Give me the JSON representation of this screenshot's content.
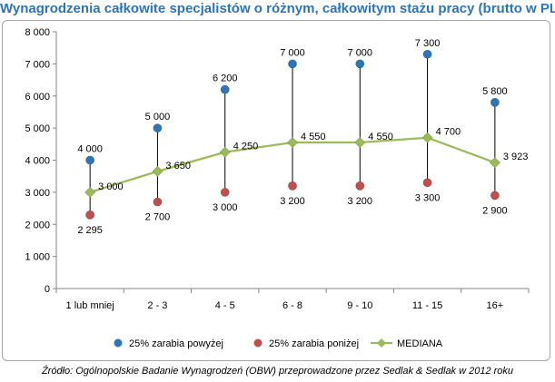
{
  "chart_data": {
    "type": "line",
    "title": "Wynagrodzenia całkowite specjalistów o różnym, całkowitym stażu pracy (brutto w PLN)",
    "categories": [
      "1 lub mniej",
      "2 - 3",
      "4 - 5",
      "6 - 8",
      "9 - 10",
      "11 - 15",
      "16+"
    ],
    "ylim": [
      0,
      8000
    ],
    "yticks": [
      0,
      1000,
      2000,
      3000,
      4000,
      5000,
      6000,
      7000,
      8000
    ],
    "ytick_labels": [
      "0",
      "1 000",
      "2 000",
      "3 000",
      "4 000",
      "5 000",
      "6 000",
      "7 000",
      "8 000"
    ],
    "grid": false,
    "legend_position": "bottom",
    "series": [
      {
        "name": "25% zarabia powyżej",
        "color": "#2e75b6",
        "marker": "circle",
        "values": [
          4000,
          5000,
          6200,
          7000,
          7000,
          7300,
          5800
        ],
        "labels": [
          "4 000",
          "5 000",
          "6 200",
          "7 000",
          "7 000",
          "7 300",
          "5 800"
        ]
      },
      {
        "name": "25% zarabia poniżej",
        "color": "#c0504d",
        "marker": "circle",
        "values": [
          2295,
          2700,
          3000,
          3200,
          3200,
          3300,
          2900
        ],
        "labels": [
          "2 295",
          "2 700",
          "3 000",
          "3 200",
          "3 200",
          "3 300",
          "2 900"
        ]
      },
      {
        "name": "MEDIANA",
        "color": "#9bbb59",
        "marker": "diamond",
        "values": [
          3000,
          3650,
          4250,
          4550,
          4550,
          4700,
          3923
        ],
        "labels": [
          "3 000",
          "3 650",
          "4 250",
          "4 550",
          "4 550",
          "4 700",
          "3 923"
        ]
      }
    ]
  },
  "source_note": "Źródło: Ogólnopolskie Badanie Wynagrodzeń (OBW) przeprowadzone przez Sedlak & Sedlak w 2012 roku"
}
